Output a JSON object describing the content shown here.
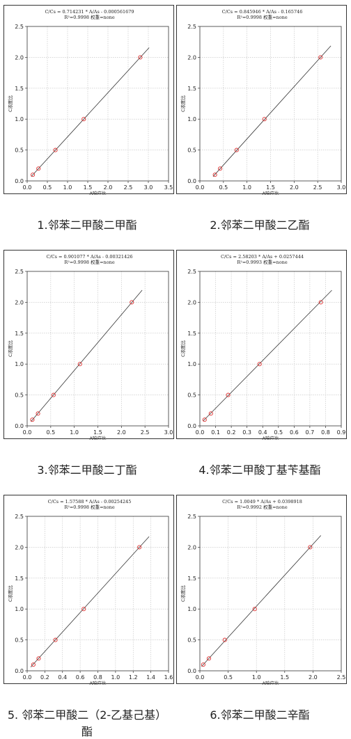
{
  "axis_labels": {
    "x": "A响应比",
    "y": "C浓度比"
  },
  "colors": {
    "line": "#333333",
    "point": "#e03030",
    "grid": "#bfbfbf",
    "frame": "#333333"
  },
  "chart_data": [
    {
      "type": "scatter",
      "equation": "C/Cs = 0.714231 * A/As - 0.000561679",
      "r2": "R²=0.9998 权重=none",
      "caption": "1.邻苯二甲酸二甲酯",
      "x": [
        0.14,
        0.28,
        0.7,
        1.4,
        2.8
      ],
      "y": [
        0.1,
        0.2,
        0.5,
        1.0,
        2.0
      ],
      "fit": {
        "slope": 0.714231,
        "intercept": -0.000561679,
        "x_range": [
          0.1,
          3.02
        ]
      },
      "xlim": [
        0,
        3.5
      ],
      "ylim": [
        0,
        2.5
      ],
      "xticks": [
        "0.0",
        "0.5",
        "1.0",
        "1.5",
        "2.0",
        "2.5",
        "3.0",
        "3.5"
      ],
      "yticks": [
        "0.0",
        "0.5",
        "1.0",
        "1.5",
        "2.0",
        "2.5"
      ],
      "grid": true
    },
    {
      "type": "scatter",
      "equation": "C/Cs = 0.845946 * A/As - 0.165746",
      "r2": "R²=0.9998 权重=none",
      "caption": "2.邻苯二甲酸二乙酯",
      "x": [
        0.32,
        0.43,
        0.78,
        1.37,
        2.56
      ],
      "y": [
        0.1,
        0.2,
        0.5,
        1.0,
        2.0
      ],
      "fit": {
        "slope": 0.845946,
        "intercept": -0.165746,
        "x_range": [
          0.28,
          2.78
        ]
      },
      "xlim": [
        0,
        3.0
      ],
      "ylim": [
        0,
        2.5
      ],
      "xticks": [
        "0.0",
        "0.5",
        "1.0",
        "1.5",
        "2.0",
        "2.5",
        "3.0"
      ],
      "yticks": [
        "0.0",
        "0.5",
        "1.0",
        "1.5",
        "2.0",
        "2.5"
      ],
      "grid": true
    },
    {
      "type": "scatter",
      "equation": "C/Cs = 0.901077 * A/As - 0.00321426",
      "r2": "R²=0.9998 权重=none",
      "caption": "3.邻苯二甲酸二丁酯",
      "x": [
        0.11,
        0.23,
        0.56,
        1.12,
        2.22
      ],
      "y": [
        0.1,
        0.2,
        0.5,
        1.0,
        2.0
      ],
      "fit": {
        "slope": 0.901077,
        "intercept": -0.00321426,
        "x_range": [
          0.08,
          2.44
        ]
      },
      "xlim": [
        0,
        3.0
      ],
      "ylim": [
        0,
        2.5
      ],
      "xticks": [
        "0.0",
        "0.5",
        "1.0",
        "1.5",
        "2.0",
        "2.5",
        "3.0"
      ],
      "yticks": [
        "0.0",
        "0.5",
        "1.0",
        "1.5",
        "2.0",
        "2.5"
      ],
      "grid": true
    },
    {
      "type": "scatter",
      "equation": "C/Cs = 2.58203 * A/As + 0.0257444",
      "r2": "R²=0.9993 权重=none",
      "caption": "4.邻苯二甲酸丁基苄基酯",
      "x": [
        0.03,
        0.07,
        0.18,
        0.38,
        0.77
      ],
      "y": [
        0.1,
        0.2,
        0.5,
        1.0,
        2.0
      ],
      "fit": {
        "slope": 2.58203,
        "intercept": 0.0257444,
        "x_range": [
          0.02,
          0.84
        ]
      },
      "xlim": [
        0,
        0.9
      ],
      "ylim": [
        0,
        2.5
      ],
      "xticks": [
        "0.0",
        "0.1",
        "0.2",
        "0.3",
        "0.4",
        "0.5",
        "0.6",
        "0.7",
        "0.8",
        "0.9"
      ],
      "yticks": [
        "0.0",
        "0.5",
        "1.0",
        "1.5",
        "2.0",
        "2.5"
      ],
      "grid": true
    },
    {
      "type": "scatter",
      "equation": "C/Cs = 1.57588 * A/As - 0.00254245",
      "r2": "R²=0.9998 权重=none",
      "caption": "5. 邻苯二甲酸二（2-乙基己基）酯",
      "x": [
        0.07,
        0.13,
        0.32,
        0.64,
        1.27
      ],
      "y": [
        0.1,
        0.2,
        0.5,
        1.0,
        2.0
      ],
      "fit": {
        "slope": 1.57588,
        "intercept": -0.00254245,
        "x_range": [
          0.04,
          1.38
        ]
      },
      "xlim": [
        0,
        1.6
      ],
      "ylim": [
        0,
        2.5
      ],
      "xticks": [
        "0.0",
        "0.2",
        "0.4",
        "0.6",
        "0.8",
        "1.0",
        "1.2",
        "1.4",
        "1.6"
      ],
      "yticks": [
        "0.0",
        "0.5",
        "1.0",
        "1.5",
        "2.0",
        "2.5"
      ],
      "grid": true
    },
    {
      "type": "scatter",
      "equation": "C/Cs = 1.0049 * A/As + 0.0398918",
      "r2": "R²=0.9992 权重=none",
      "caption": "6.邻苯二甲酸二辛酯",
      "x": [
        0.06,
        0.16,
        0.44,
        0.97,
        1.95
      ],
      "y": [
        0.1,
        0.2,
        0.5,
        1.0,
        2.0
      ],
      "fit": {
        "slope": 1.0049,
        "intercept": 0.0398918,
        "x_range": [
          0.03,
          2.14
        ]
      },
      "xlim": [
        0,
        2.5
      ],
      "ylim": [
        0,
        2.5
      ],
      "xticks": [
        "0.0",
        "0.5",
        "1.0",
        "1.5",
        "2.0",
        "2.5"
      ],
      "yticks": [
        "0.0",
        "0.5",
        "1.0",
        "1.5",
        "2.0",
        "2.5"
      ],
      "grid": true
    }
  ]
}
